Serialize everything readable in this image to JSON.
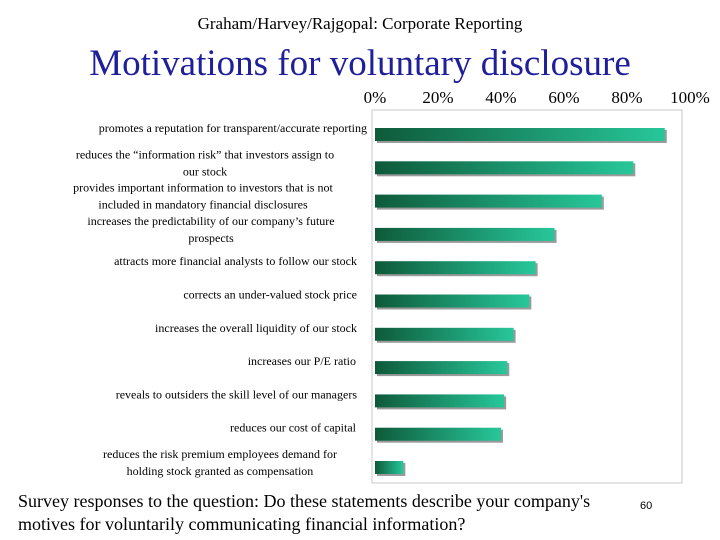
{
  "header": "Graham/Harvey/Rajgopal: Corporate Reporting",
  "title": "Motivations for voluntary disclosure",
  "caption": "Survey responses to the question: Do these statements describe your company's motives for voluntarily communicating financial information?",
  "page_number": "60",
  "colors": {
    "title": "#1f1f9a",
    "bar_dark": "#0e5a3a",
    "bar_light": "#27c79a"
  },
  "chart_data": {
    "type": "bar",
    "orientation": "horizontal",
    "xlim": [
      0,
      100
    ],
    "tick_labels": [
      "0%",
      "20%",
      "40%",
      "60%",
      "80%",
      "100%"
    ],
    "tick_values": [
      0,
      20,
      40,
      60,
      80,
      100
    ],
    "grid": false,
    "categories": [
      "promotes a reputation for transparent/accurate reporting",
      "reduces the “information risk” that investors assign to our stock",
      "provides important information to investors that is not included in mandatory financial disclosures",
      "increases the predictability of our company’s future prospects",
      "attracts more financial analysts to follow our stock",
      "corrects an under-valued stock price",
      "increases the overall liquidity of our stock",
      "increases our P/E ratio",
      "reveals to outsiders the skill level of our managers",
      "reduces our cost of capital",
      "reduces the risk premium employees demand for holding stock granted as compensation"
    ],
    "values": [
      92,
      82,
      72,
      57,
      51,
      49,
      44,
      42,
      41,
      40,
      9
    ]
  }
}
